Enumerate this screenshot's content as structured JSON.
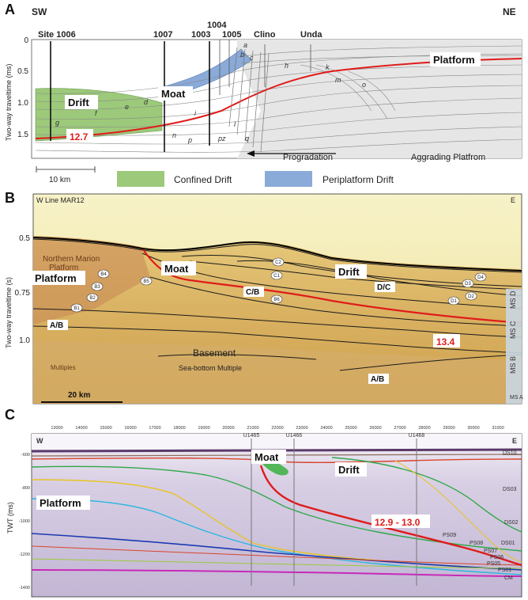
{
  "panel_a": {
    "letter": "A",
    "sw": "SW",
    "ne": "NE",
    "sites": [
      "Site 1006",
      "1007",
      "1003",
      "1004",
      "1005",
      "Clino",
      "Unda"
    ],
    "y_axis_label": "Two-way traveltime (ms)",
    "y_ticks": [
      "0",
      "0.5",
      "1.0",
      "1.5"
    ],
    "labels": {
      "drift": "Drift",
      "moat": "Moat",
      "platform": "Platform",
      "age": "12.7",
      "progradation": "Progradation",
      "aggrading": "Aggrading Platfrom"
    },
    "horizon_letters": [
      "a",
      "b",
      "c",
      "d",
      "e",
      "f",
      "g",
      "h",
      "i",
      "k",
      "l",
      "m",
      "n",
      "o",
      "p",
      "pz",
      "q"
    ],
    "scale": "10 km",
    "legend": [
      {
        "label": "Confined Drift",
        "color": "#9cc97a"
      },
      {
        "label": "Periplatform Drift",
        "color": "#8aaad8"
      }
    ]
  },
  "panel_b": {
    "letter": "B",
    "line_name": "W  Line MAR12",
    "east": "E",
    "y_axis_label": "Two-way traveltime (s)",
    "y_ticks": [
      "0.5",
      "0.75",
      "1.0"
    ],
    "labels": {
      "northern_marion": "Northern Marion",
      "platform_small": "Platform",
      "platform": "Platform",
      "moat": "Moat",
      "drift": "Drift",
      "cb": "C/B",
      "dc": "D/C",
      "ab_left": "A/B",
      "ab_right": "A/B",
      "age": "13.4",
      "basement": "Basement",
      "sea_bottom": "Sea-bottom Multiple",
      "multiples": "Multiples"
    },
    "circles": [
      "B4",
      "B3",
      "B2",
      "B1",
      "B5",
      "C2",
      "C1",
      "B6",
      "D1",
      "D2",
      "D3",
      "D4"
    ],
    "ms_labels": [
      "MS D",
      "MS C",
      "MS B",
      "MS A"
    ],
    "scale": "20 km"
  },
  "panel_c": {
    "letter": "C",
    "west": "W",
    "east": "E",
    "y_axis_label": "TWT (ms)",
    "x_ticks": [
      "13000",
      "14000",
      "15000",
      "16000",
      "17000",
      "18000",
      "19000",
      "20000",
      "21000",
      "22000",
      "23000",
      "24000",
      "25000",
      "26000",
      "27000",
      "28000",
      "29000",
      "30000",
      "31000"
    ],
    "y_ticks": [
      "-600",
      "-800",
      "-1000",
      "-1200",
      "-1400"
    ],
    "wells": [
      "U1465",
      "U1466",
      "U1468"
    ],
    "labels": {
      "moat": "Moat",
      "drift": "Drift",
      "platform": "Platform",
      "age": "12.9 - 13.0"
    },
    "seq_labels": [
      "DS10",
      "DS03",
      "DS02",
      "DS01",
      "PS09",
      "PS08",
      "PS07",
      "PS06",
      "PS05",
      "PS01",
      "CM"
    ]
  }
}
